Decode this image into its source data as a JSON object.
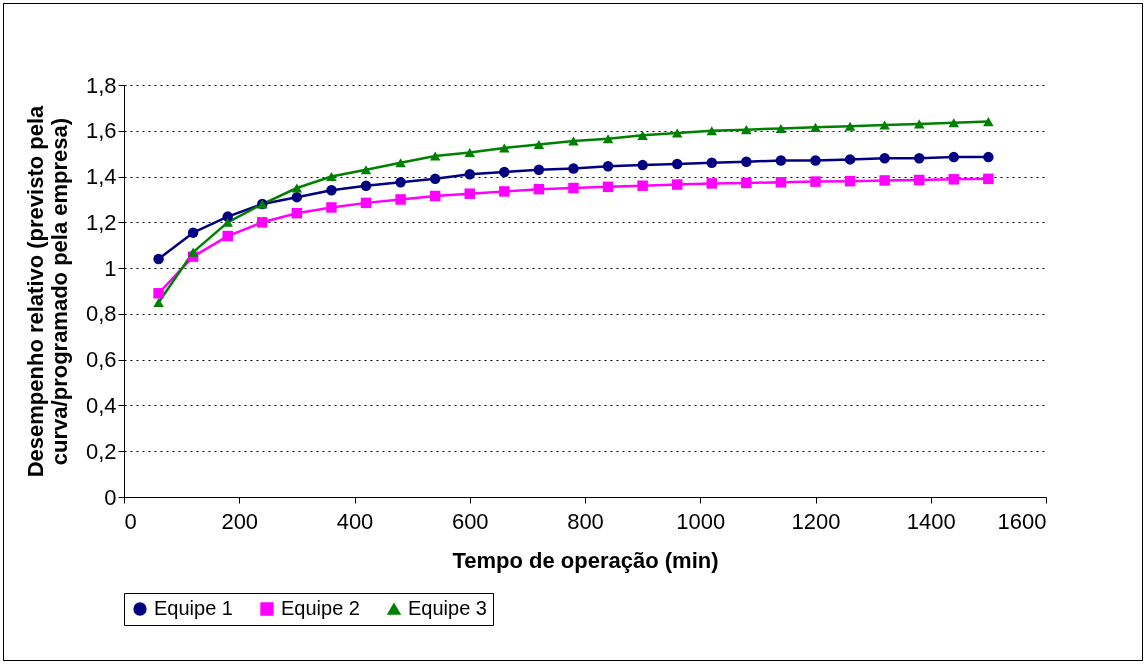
{
  "chart_data": {
    "type": "line",
    "xlabel": "Tempo de operação (min)",
    "ylabel": "Desempenho relativo (previsto pela curva/programado pela empresa)",
    "x": [
      60,
      120,
      180,
      240,
      300,
      360,
      420,
      480,
      540,
      600,
      660,
      720,
      780,
      840,
      900,
      960,
      1020,
      1080,
      1140,
      1200,
      1260,
      1320,
      1380,
      1440,
      1500
    ],
    "series": [
      {
        "name": "Equipe 1",
        "color": "#000080",
        "marker": "circle",
        "values": [
          1.04,
          1.155,
          1.225,
          1.28,
          1.31,
          1.34,
          1.36,
          1.375,
          1.39,
          1.41,
          1.42,
          1.43,
          1.435,
          1.445,
          1.45,
          1.455,
          1.46,
          1.465,
          1.47,
          1.47,
          1.475,
          1.48,
          1.48,
          1.485,
          1.485
        ]
      },
      {
        "name": "Equipe 2",
        "color": "#ff00ff",
        "marker": "square",
        "values": [
          0.89,
          1.05,
          1.14,
          1.2,
          1.24,
          1.265,
          1.285,
          1.3,
          1.315,
          1.325,
          1.335,
          1.345,
          1.35,
          1.355,
          1.36,
          1.365,
          1.37,
          1.372,
          1.375,
          1.378,
          1.38,
          1.383,
          1.385,
          1.388,
          1.39
        ]
      },
      {
        "name": "Equipe 3",
        "color": "#008000",
        "marker": "triangle",
        "values": [
          0.85,
          1.07,
          1.2,
          1.28,
          1.35,
          1.4,
          1.43,
          1.46,
          1.49,
          1.505,
          1.525,
          1.54,
          1.555,
          1.565,
          1.58,
          1.59,
          1.6,
          1.605,
          1.61,
          1.615,
          1.62,
          1.625,
          1.63,
          1.635,
          1.64
        ]
      }
    ],
    "xlim": [
      0,
      1600
    ],
    "xticks": [
      0,
      200,
      400,
      600,
      800,
      1000,
      1200,
      1400,
      1600
    ],
    "ylim": [
      0,
      1.8
    ],
    "yticks": [
      0,
      {
        "value": 0.2,
        "label": "0,2"
      },
      {
        "value": 0.4,
        "label": "0,4"
      },
      {
        "value": 0.6,
        "label": "0,6"
      },
      {
        "value": 0.8,
        "label": "0,8"
      },
      1,
      {
        "value": 1.2,
        "label": "1,2"
      },
      {
        "value": 1.4,
        "label": "1,4"
      },
      {
        "value": 1.6,
        "label": "1,6"
      },
      {
        "value": 1.8,
        "label": "1,8"
      }
    ],
    "grid": "y",
    "legend": "bottom",
    "line_style": "solid"
  }
}
